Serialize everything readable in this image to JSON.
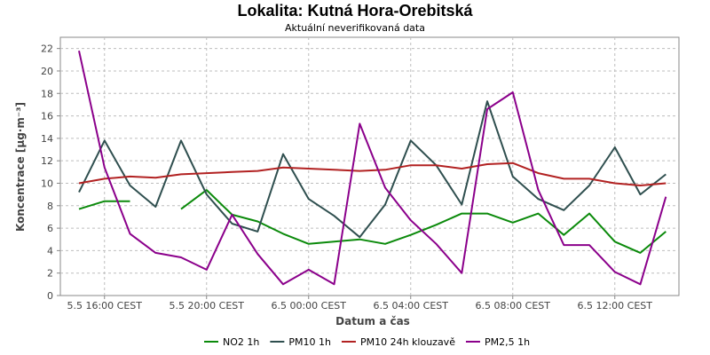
{
  "chart_data": {
    "type": "line",
    "title": "Lokalita: Kutná Hora-Orebitská",
    "subtitle": "Aktuální neverifikovaná data",
    "xlabel": "Datum a čas",
    "ylabel": "Koncentrace [µg·m⁻³]",
    "ylim": [
      0,
      23
    ],
    "yticks": [
      0,
      2,
      4,
      6,
      8,
      10,
      12,
      14,
      16,
      18,
      20,
      22
    ],
    "x": [
      "5.5 15:00",
      "5.5 16:00",
      "5.5 17:00",
      "5.5 18:00",
      "5.5 19:00",
      "5.5 20:00",
      "5.5 21:00",
      "5.5 22:00",
      "5.5 23:00",
      "6.5 00:00",
      "6.5 01:00",
      "6.5 02:00",
      "6.5 03:00",
      "6.5 04:00",
      "6.5 05:00",
      "6.5 06:00",
      "6.5 07:00",
      "6.5 08:00",
      "6.5 09:00",
      "6.5 10:00",
      "6.5 11:00",
      "6.5 12:00",
      "6.5 13:00",
      "6.5 14:00"
    ],
    "xtick_labels": [
      "5.5 16:00 CEST",
      "5.5 20:00 CEST",
      "6.5 00:00 CEST",
      "6.5 04:00 CEST",
      "6.5 08:00 CEST",
      "6.5 12:00 CEST"
    ],
    "xtick_positions": [
      "5.5 16:00",
      "5.5 20:00",
      "6.5 00:00",
      "6.5 04:00",
      "6.5 08:00",
      "6.5 12:00"
    ],
    "grid": true,
    "legend_position": "bottom",
    "series": [
      {
        "name": "NO2 1h",
        "color": "#0b8a0b",
        "values": [
          7.7,
          8.4,
          8.4,
          null,
          7.7,
          9.4,
          7.2,
          6.6,
          5.5,
          4.6,
          4.8,
          5.0,
          4.6,
          5.4,
          6.3,
          7.3,
          7.3,
          6.5,
          7.3,
          5.4,
          7.3,
          4.8,
          3.8,
          5.7
        ]
      },
      {
        "name": "PM10 1h",
        "color": "#2f4f4f",
        "values": [
          9.2,
          13.8,
          9.8,
          7.9,
          13.8,
          9.0,
          6.4,
          5.7,
          12.6,
          8.6,
          7.1,
          5.2,
          8.1,
          13.8,
          11.6,
          8.1,
          17.3,
          10.6,
          8.6,
          7.6,
          9.8,
          13.2,
          9.0,
          10.8
        ]
      },
      {
        "name": "PM10 24h klouzavě",
        "color": "#b22222",
        "values": [
          10.0,
          10.4,
          10.6,
          10.5,
          10.8,
          10.9,
          11.0,
          11.1,
          11.4,
          11.3,
          11.2,
          11.1,
          11.2,
          11.6,
          11.6,
          11.3,
          11.7,
          11.8,
          10.9,
          10.4,
          10.4,
          10.0,
          9.8,
          10.0
        ]
      },
      {
        "name": "PM2,5 1h",
        "color": "#8b008b",
        "values": [
          21.8,
          11.4,
          5.5,
          3.8,
          3.4,
          2.3,
          7.2,
          3.7,
          1.0,
          2.3,
          1.0,
          15.3,
          9.6,
          6.7,
          4.6,
          2.0,
          16.6,
          18.1,
          9.4,
          4.5,
          4.5,
          2.1,
          1.0,
          8.8
        ]
      }
    ]
  }
}
